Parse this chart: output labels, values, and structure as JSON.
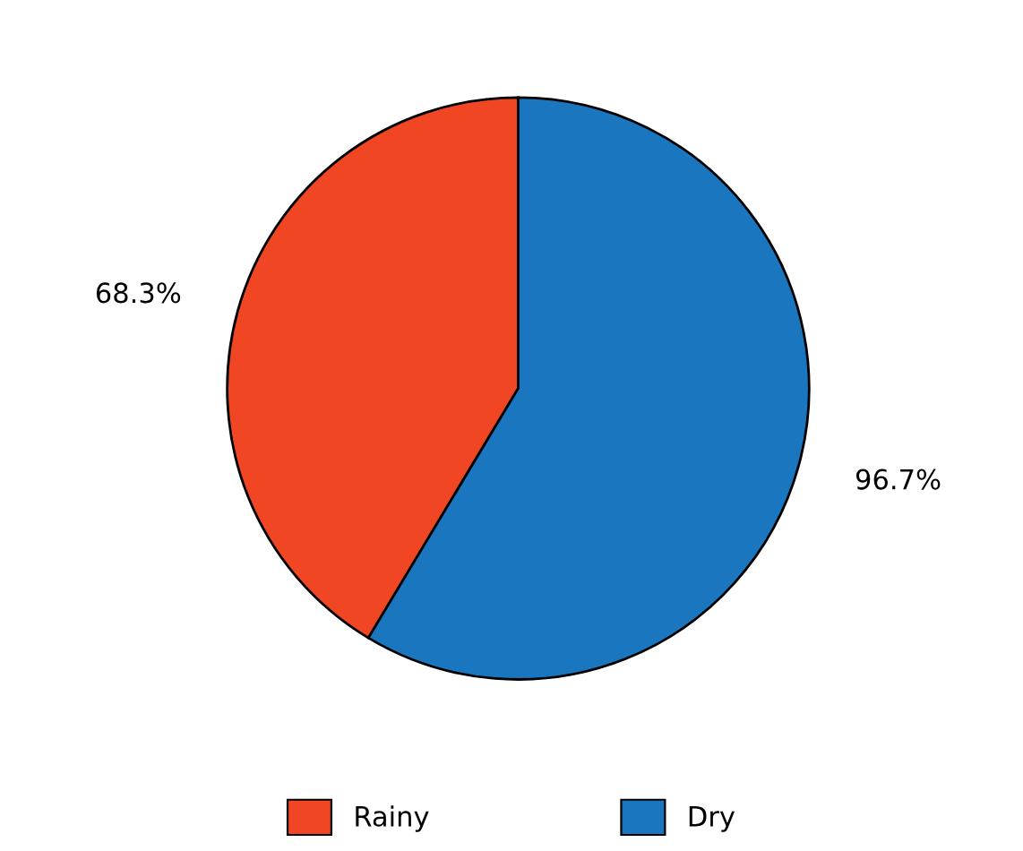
{
  "chart_data": {
    "type": "pie",
    "categories": [
      "Rainy",
      "Dry"
    ],
    "values": [
      68.3,
      96.7
    ],
    "colors": [
      "#f04623",
      "#1a76be"
    ],
    "value_labels": [
      "68.3%",
      "96.7%"
    ],
    "legend": "bottom"
  }
}
